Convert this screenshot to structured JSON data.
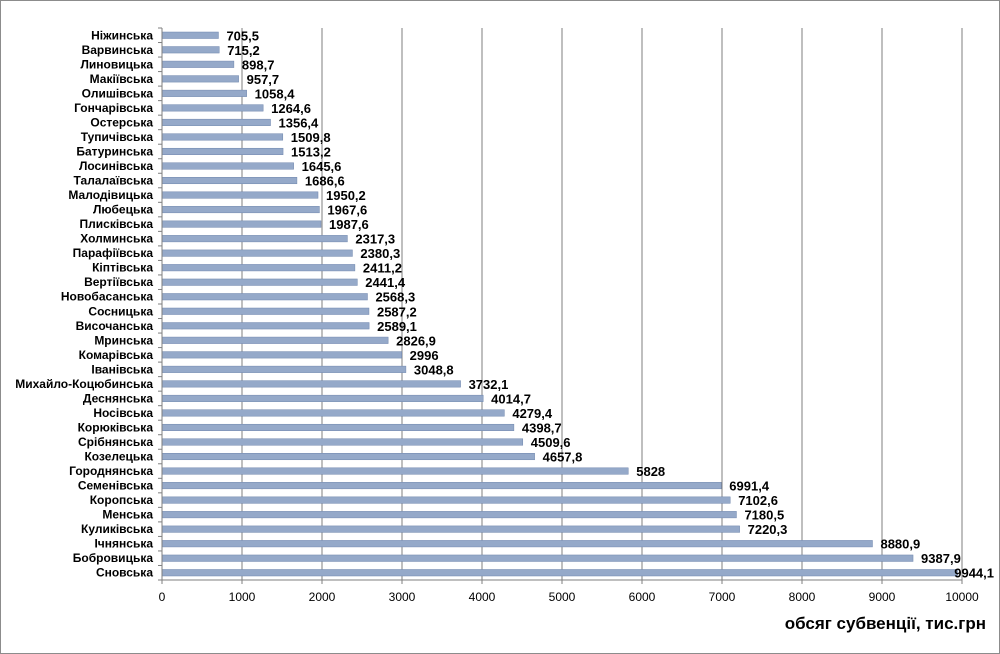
{
  "chart_data": {
    "type": "bar",
    "orientation": "horizontal",
    "categories": [
      "Ніжинська",
      "Варвинська",
      "Линовицька",
      "Макіївська",
      "Олишівська",
      "Гончарівська",
      "Остерська",
      "Тупичівська",
      "Батуринська",
      "Лосинівська",
      "Талалаївська",
      "Малодівицька",
      "Любецька",
      "Плисківська",
      "Холминська",
      "Парафіївська",
      "Кіптівська",
      "Вертіївська",
      "Новобасанська",
      "Сосницька",
      "Височанська",
      "Мринська",
      "Комарівська",
      "Іванівська",
      "Михайло-Коцюбинська",
      "Деснянська",
      "Носівська",
      "Корюківська",
      "Срібнянська",
      "Козелецька",
      "Городнянська",
      "Семенівська",
      "Коропська",
      "Менська",
      "Куликівська",
      "Ічнянська",
      "Бобровицька",
      "Сновська"
    ],
    "values": [
      705.5,
      715.2,
      898.7,
      957.7,
      1058.4,
      1264.6,
      1356.4,
      1509.8,
      1513.2,
      1645.6,
      1686.6,
      1950.2,
      1967.6,
      1987.6,
      2317.3,
      2380.3,
      2411.2,
      2441.4,
      2568.3,
      2587.2,
      2589.1,
      2826.9,
      2996,
      3048.8,
      3732.1,
      4014.7,
      4279.4,
      4398.7,
      4509.6,
      4657.8,
      5828,
      6991.4,
      7102.6,
      7180.5,
      7220.3,
      8880.9,
      9387.9,
      9944.1
    ],
    "value_labels": [
      "705,5",
      "715,2",
      "898,7",
      "957,7",
      "1058,4",
      "1264,6",
      "1356,4",
      "1509,8",
      "1513,2",
      "1645,6",
      "1686,6",
      "1950,2",
      "1967,6",
      "1987,6",
      "2317,3",
      "2380,3",
      "2411,2",
      "2441,4",
      "2568,3",
      "2587,2",
      "2589,1",
      "2826,9",
      "2996",
      "3048,8",
      "3732,1",
      "4014,7",
      "4279,4",
      "4398,7",
      "4509,6",
      "4657,8",
      "5828",
      "6991,4",
      "7102,6",
      "7180,5",
      "7220,3",
      "8880,9",
      "9387,9",
      "9944,1"
    ],
    "xticks": [
      0,
      1000,
      2000,
      3000,
      4000,
      5000,
      6000,
      7000,
      8000,
      9000,
      10000
    ],
    "xlim": [
      0,
      10000
    ],
    "xlabel": "обсяг субвенції, тис.грн",
    "title": "",
    "grid": "vertical",
    "bar_color": "#95a9c9"
  }
}
